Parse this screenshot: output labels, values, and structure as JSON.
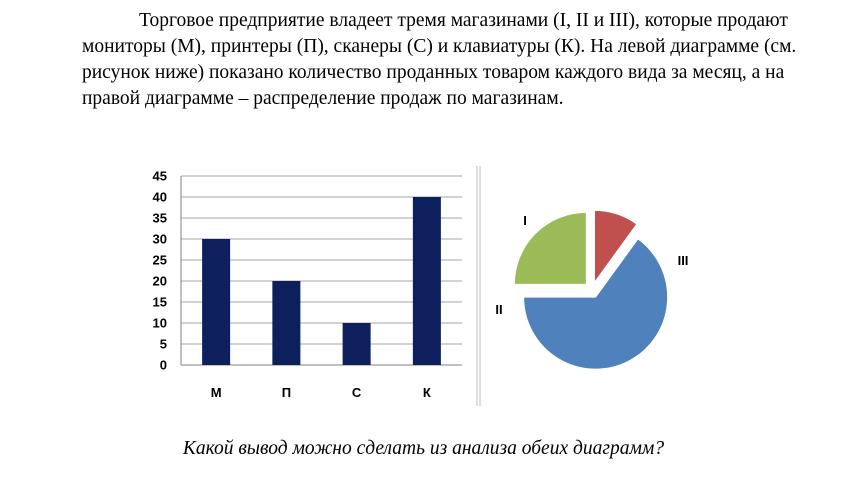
{
  "intro_text": "Торговое предприятие владеет тремя магазинами (I, II и III), которые продают мониторы (М), принтеры (П), сканеры (С) и клавиатуры (К). На левой диаграмме (см. рисунок ниже) показано количество проданных товаром каждого вида за месяц, а на правой диаграмме – распределение продаж по магазинам.",
  "question_text": "Какой вывод можно сделать из анализа обеих диаграмм?",
  "chart_data": [
    {
      "type": "bar",
      "categories": [
        "М",
        "П",
        "С",
        "К"
      ],
      "values": [
        30,
        20,
        10,
        40
      ],
      "ylim": [
        0,
        45
      ],
      "yticks": [
        0,
        5,
        10,
        15,
        20,
        25,
        30,
        35,
        40,
        45
      ],
      "grid": true,
      "bar_color": "#0d1f5c"
    },
    {
      "type": "pie",
      "labels": [
        "I",
        "II",
        "III"
      ],
      "values": [
        25,
        10,
        65
      ],
      "colors": [
        "#9bbb59",
        "#c0504d",
        "#4f81bd"
      ],
      "exploded": true
    }
  ]
}
